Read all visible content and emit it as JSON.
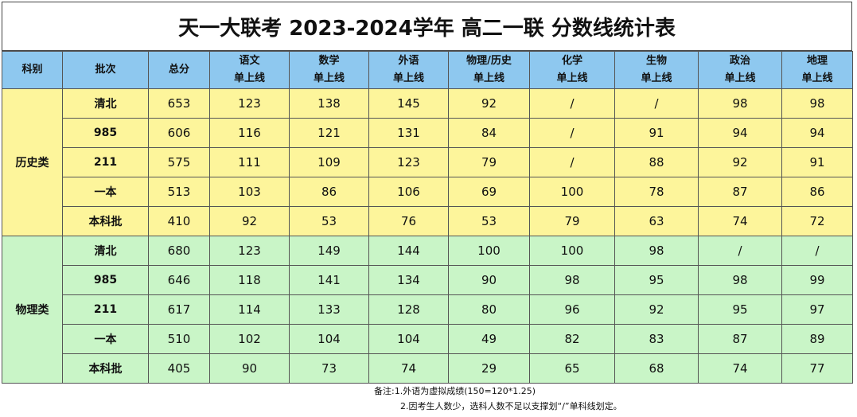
{
  "title": "天一大联考 2023-2024学年 高二一联 分数线统计表",
  "headers": {
    "subject": "科别",
    "batch": "批次",
    "total": "总分",
    "chinese": [
      "语文",
      "单上线"
    ],
    "math": [
      "数学",
      "单上线"
    ],
    "foreign": [
      "外语",
      "单上线"
    ],
    "phys_hist": [
      "物理/历史",
      "单上线"
    ],
    "chem": [
      "化学",
      "单上线"
    ],
    "bio": [
      "生物",
      "单上线"
    ],
    "politics": [
      "政治",
      "单上线"
    ],
    "geo": [
      "地理",
      "单上线"
    ]
  },
  "groups": [
    {
      "subject": "历史类",
      "rows": [
        {
          "batch": "清北",
          "total": "653",
          "chinese": "123",
          "math": "138",
          "foreign": "145",
          "phys_hist": "92",
          "chem": "/",
          "bio": "/",
          "politics": "98",
          "geo": "98"
        },
        {
          "batch": "985",
          "total": "606",
          "chinese": "116",
          "math": "121",
          "foreign": "131",
          "phys_hist": "84",
          "chem": "/",
          "bio": "91",
          "politics": "94",
          "geo": "94"
        },
        {
          "batch": "211",
          "total": "575",
          "chinese": "111",
          "math": "109",
          "foreign": "123",
          "phys_hist": "79",
          "chem": "/",
          "bio": "88",
          "politics": "92",
          "geo": "91"
        },
        {
          "batch": "一本",
          "total": "513",
          "chinese": "103",
          "math": "86",
          "foreign": "106",
          "phys_hist": "69",
          "chem": "100",
          "bio": "78",
          "politics": "87",
          "geo": "86"
        },
        {
          "batch": "本科批",
          "total": "410",
          "chinese": "92",
          "math": "53",
          "foreign": "76",
          "phys_hist": "53",
          "chem": "79",
          "bio": "63",
          "politics": "74",
          "geo": "72"
        }
      ]
    },
    {
      "subject": "物理类",
      "rows": [
        {
          "batch": "清北",
          "total": "680",
          "chinese": "123",
          "math": "149",
          "foreign": "144",
          "phys_hist": "100",
          "chem": "100",
          "bio": "98",
          "politics": "/",
          "geo": "/"
        },
        {
          "batch": "985",
          "total": "646",
          "chinese": "118",
          "math": "141",
          "foreign": "134",
          "phys_hist": "90",
          "chem": "98",
          "bio": "95",
          "politics": "98",
          "geo": "99"
        },
        {
          "batch": "211",
          "total": "617",
          "chinese": "114",
          "math": "133",
          "foreign": "128",
          "phys_hist": "80",
          "chem": "96",
          "bio": "92",
          "politics": "95",
          "geo": "97"
        },
        {
          "batch": "一本",
          "total": "510",
          "chinese": "102",
          "math": "104",
          "foreign": "104",
          "phys_hist": "49",
          "chem": "82",
          "bio": "83",
          "politics": "87",
          "geo": "89"
        },
        {
          "batch": "本科批",
          "total": "405",
          "chinese": "90",
          "math": "73",
          "foreign": "74",
          "phys_hist": "29",
          "chem": "65",
          "bio": "68",
          "politics": "74",
          "geo": "77"
        }
      ]
    }
  ],
  "notes": [
    "备注:1.外语为虚拟成绩(150=120*1.25)",
    "2.因考生人数少，选科人数不足以支撑划“/”单科线划定。"
  ],
  "colors": {
    "header_bg": "#8ec8ef",
    "history_bg": "#fdf59b",
    "physics_bg": "#c9f5c7"
  }
}
